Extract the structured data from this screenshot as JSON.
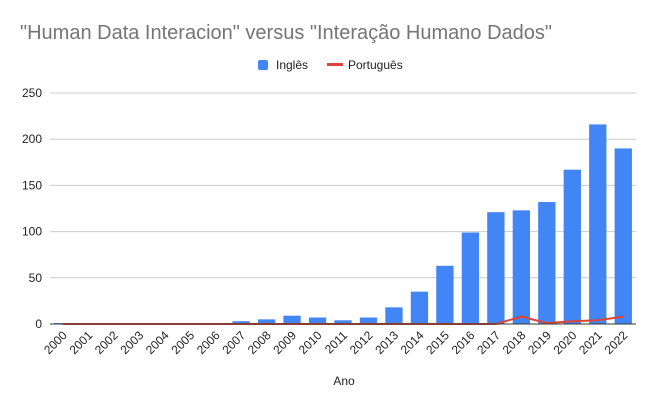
{
  "chart_data": {
    "type": "bar",
    "title": "\"Human Data Interacion\" versus \"Interação Humano Dados\"",
    "xlabel": "Ano",
    "ylabel": "",
    "ylim": [
      0,
      250
    ],
    "yticks": [
      0,
      50,
      100,
      150,
      200,
      250
    ],
    "grid": true,
    "legend_position": "top-center",
    "categories": [
      "2000",
      "2001",
      "2002",
      "2003",
      "2004",
      "2005",
      "2006",
      "2007",
      "2008",
      "2009",
      "2010",
      "2011",
      "2012",
      "2013",
      "2014",
      "2015",
      "2016",
      "2017",
      "2018",
      "2019",
      "2020",
      "2021",
      "2022"
    ],
    "series": [
      {
        "name": "Inglês",
        "type": "bar",
        "color": "#4285f4",
        "values": [
          1,
          1,
          0,
          0,
          1,
          0,
          1,
          3,
          5,
          9,
          7,
          4,
          7,
          18,
          35,
          63,
          99,
          121,
          123,
          132,
          167,
          216,
          190
        ]
      },
      {
        "name": "Português",
        "type": "line",
        "color": "#db4437",
        "values": [
          0,
          0,
          0,
          0,
          0,
          0,
          0,
          0,
          0,
          0,
          0,
          0,
          0,
          0,
          0,
          0,
          0,
          0,
          8,
          1,
          3,
          4,
          8
        ]
      }
    ]
  }
}
